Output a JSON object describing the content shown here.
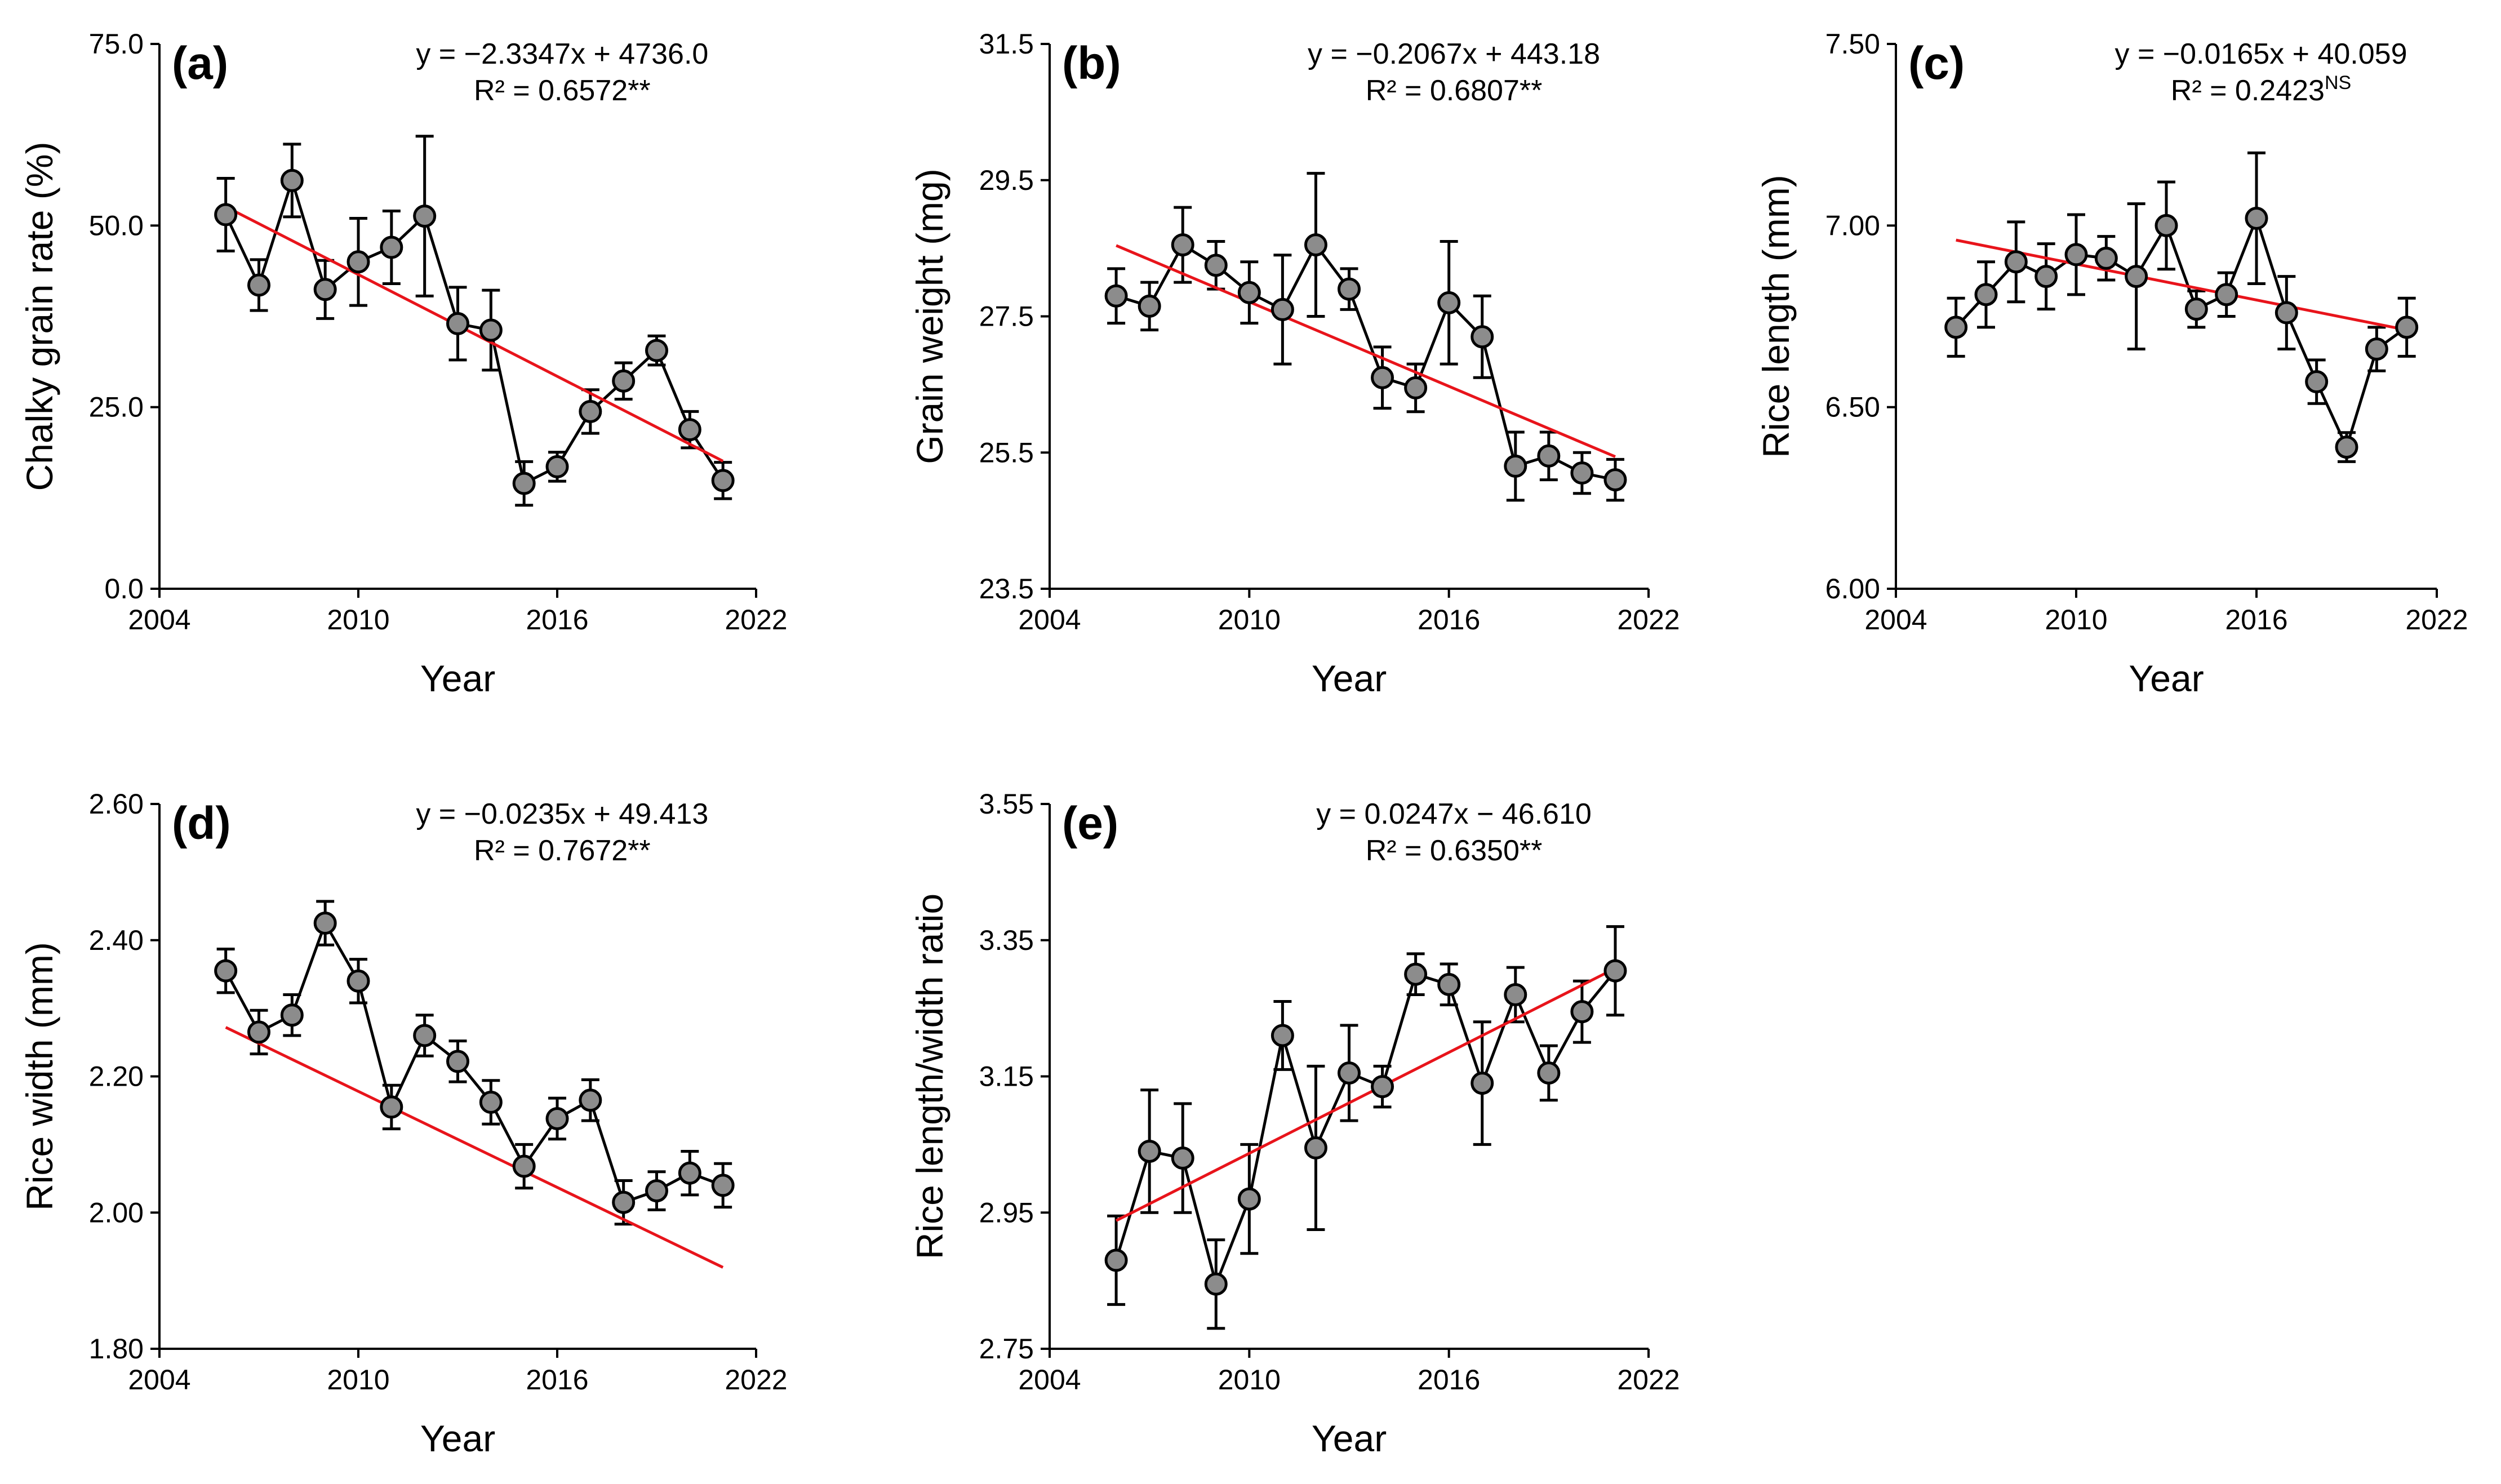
{
  "chart_data": [
    {
      "type": "line",
      "panel_label": "(a)",
      "equation": "y = −2.3347x + 4736.0",
      "r2_text": "R² = 0.6572",
      "significance": "**",
      "xlabel": "Year",
      "ylabel": "Chalky grain rate (%)",
      "xlim": [
        2004,
        2022
      ],
      "ylim": [
        0,
        75
      ],
      "x_ticks": [
        2004,
        2010,
        2016,
        2022
      ],
      "x_tick_labels": [
        "2004",
        "2010",
        "2016",
        "2022"
      ],
      "y_ticks": [
        0,
        25,
        50,
        75
      ],
      "y_tick_labels": [
        "0.0",
        "25.0",
        "50.0",
        "75.0"
      ],
      "x": [
        2006,
        2007,
        2008,
        2009,
        2010,
        2011,
        2012,
        2013,
        2014,
        2015,
        2016,
        2017,
        2018,
        2019,
        2020,
        2021
      ],
      "values": [
        51.5,
        41.8,
        56.2,
        41.2,
        45.0,
        47.0,
        51.3,
        36.5,
        35.6,
        14.5,
        16.8,
        24.4,
        28.6,
        32.8,
        21.9,
        14.9
      ],
      "errors": [
        5.0,
        3.5,
        5.0,
        4.0,
        6.0,
        5.0,
        11.0,
        5.0,
        5.5,
        3.0,
        2.0,
        3.0,
        2.5,
        2.0,
        2.5,
        2.5
      ],
      "trend": {
        "slope": -2.3347,
        "intercept": 4736.0,
        "x_range": [
          2006,
          2021
        ]
      }
    },
    {
      "type": "line",
      "panel_label": "(b)",
      "equation": "y = −0.2067x + 443.18",
      "r2_text": "R² = 0.6807",
      "significance": "**",
      "xlabel": "Year",
      "ylabel": "Grain weight (mg)",
      "xlim": [
        2004,
        2022
      ],
      "ylim": [
        23.5,
        31.5
      ],
      "x_ticks": [
        2004,
        2010,
        2016,
        2022
      ],
      "x_tick_labels": [
        "2004",
        "2010",
        "2016",
        "2022"
      ],
      "y_ticks": [
        23.5,
        25.5,
        27.5,
        29.5,
        31.5
      ],
      "y_tick_labels": [
        "23.5",
        "25.5",
        "27.5",
        "29.5",
        "31.5"
      ],
      "x": [
        2006,
        2007,
        2008,
        2009,
        2010,
        2011,
        2012,
        2013,
        2014,
        2015,
        2016,
        2017,
        2018,
        2019,
        2020,
        2021
      ],
      "values": [
        27.8,
        27.65,
        28.55,
        28.25,
        27.85,
        27.6,
        28.55,
        27.9,
        26.6,
        26.45,
        27.7,
        27.2,
        25.3,
        25.45,
        25.2,
        25.1
      ],
      "errors": [
        0.4,
        0.35,
        0.55,
        0.35,
        0.45,
        0.8,
        1.05,
        0.3,
        0.45,
        0.35,
        0.9,
        0.6,
        0.5,
        0.35,
        0.3,
        0.3
      ],
      "trend": {
        "slope": -0.2067,
        "intercept": 443.18,
        "x_range": [
          2006,
          2021
        ]
      }
    },
    {
      "type": "line",
      "panel_label": "(c)",
      "equation": "y = −0.0165x + 40.059",
      "r2_text": "R² = 0.2423",
      "significance": "NS",
      "xlabel": "Year",
      "ylabel": "Rice length (mm)",
      "xlim": [
        2004,
        2022
      ],
      "ylim": [
        6.0,
        7.5
      ],
      "x_ticks": [
        2004,
        2010,
        2016,
        2022
      ],
      "x_tick_labels": [
        "2004",
        "2010",
        "2016",
        "2022"
      ],
      "y_ticks": [
        6.0,
        6.5,
        7.0,
        7.5
      ],
      "y_tick_labels": [
        "6.00",
        "6.50",
        "7.00",
        "7.50"
      ],
      "x": [
        2006,
        2007,
        2008,
        2009,
        2010,
        2011,
        2012,
        2013,
        2014,
        2015,
        2016,
        2017,
        2018,
        2019,
        2020,
        2021
      ],
      "values": [
        6.72,
        6.81,
        6.9,
        6.86,
        6.92,
        6.91,
        6.86,
        7.0,
        6.77,
        6.81,
        7.02,
        6.76,
        6.57,
        6.39,
        6.66,
        6.72
      ],
      "errors": [
        0.08,
        0.09,
        0.11,
        0.09,
        0.11,
        0.06,
        0.2,
        0.12,
        0.05,
        0.06,
        0.18,
        0.1,
        0.06,
        0.04,
        0.06,
        0.08
      ],
      "trend": {
        "slope": -0.0165,
        "intercept": 40.059,
        "x_range": [
          2006,
          2021
        ]
      }
    },
    {
      "type": "line",
      "panel_label": "(d)",
      "equation": "y = −0.0235x + 49.413",
      "r2_text": "R² = 0.7672",
      "significance": "**",
      "xlabel": "Year",
      "ylabel": "Rice width (mm)",
      "xlim": [
        2004,
        2022
      ],
      "ylim": [
        1.8,
        2.6
      ],
      "x_ticks": [
        2004,
        2010,
        2016,
        2022
      ],
      "x_tick_labels": [
        "2004",
        "2010",
        "2016",
        "2022"
      ],
      "y_ticks": [
        1.8,
        2.0,
        2.2,
        2.4,
        2.6
      ],
      "y_tick_labels": [
        "1.80",
        "2.00",
        "2.20",
        "2.40",
        "2.60"
      ],
      "x": [
        2006,
        2007,
        2008,
        2009,
        2010,
        2011,
        2012,
        2013,
        2014,
        2015,
        2016,
        2017,
        2018,
        2019,
        2020,
        2021
      ],
      "values": [
        2.355,
        2.265,
        2.29,
        2.425,
        2.34,
        2.155,
        2.26,
        2.222,
        2.162,
        2.068,
        2.138,
        2.165,
        2.015,
        2.032,
        2.058,
        2.04
      ],
      "errors": [
        0.032,
        0.032,
        0.03,
        0.032,
        0.032,
        0.032,
        0.03,
        0.03,
        0.032,
        0.032,
        0.03,
        0.03,
        0.032,
        0.028,
        0.032,
        0.032
      ],
      "trend": {
        "slope": -0.0235,
        "intercept": 49.413,
        "x_range": [
          2006,
          2021
        ]
      }
    },
    {
      "type": "line",
      "panel_label": "(e)",
      "equation": "y = 0.0247x − 46.610",
      "r2_text": "R² = 0.6350",
      "significance": "**",
      "xlabel": "Year",
      "ylabel": "Rice length/width ratio",
      "xlim": [
        2004,
        2022
      ],
      "ylim": [
        2.75,
        3.55
      ],
      "x_ticks": [
        2004,
        2010,
        2016,
        2022
      ],
      "x_tick_labels": [
        "2004",
        "2010",
        "2016",
        "2022"
      ],
      "y_ticks": [
        2.75,
        2.95,
        3.15,
        3.35,
        3.55
      ],
      "y_tick_labels": [
        "2.75",
        "2.95",
        "3.15",
        "3.35",
        "3.55"
      ],
      "x": [
        2006,
        2007,
        2008,
        2009,
        2010,
        2011,
        2012,
        2013,
        2014,
        2015,
        2016,
        2017,
        2018,
        2019,
        2020,
        2021
      ],
      "values": [
        2.88,
        3.04,
        3.03,
        2.845,
        2.97,
        3.21,
        3.045,
        3.155,
        3.135,
        3.3,
        3.285,
        3.14,
        3.27,
        3.155,
        3.245,
        3.305
      ],
      "errors": [
        0.065,
        0.09,
        0.08,
        0.065,
        0.08,
        0.05,
        0.12,
        0.07,
        0.03,
        0.03,
        0.03,
        0.09,
        0.04,
        0.04,
        0.045,
        0.065
      ],
      "trend": {
        "slope": 0.0247,
        "intercept": -46.61,
        "x_range": [
          2006,
          2021
        ]
      }
    }
  ]
}
